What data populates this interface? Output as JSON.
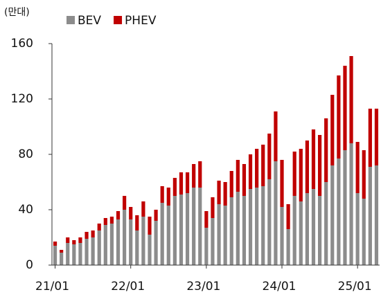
{
  "chart_data": {
    "type": "stacked_bar",
    "y_label": "(만대)",
    "categories": [
      "21/01",
      null,
      null,
      null,
      null,
      null,
      null,
      null,
      null,
      null,
      null,
      null,
      "22/01",
      null,
      null,
      null,
      null,
      null,
      null,
      null,
      null,
      null,
      null,
      null,
      "23/01",
      null,
      null,
      null,
      null,
      null,
      null,
      null,
      null,
      null,
      null,
      null,
      "24/01",
      null,
      null,
      null,
      null,
      null,
      null,
      null,
      null,
      null,
      null,
      null,
      "25/01",
      null,
      null,
      null
    ],
    "series": [
      {
        "name": "BEV",
        "color": "#8c8c8c",
        "values": [
          14,
          9,
          16,
          15,
          16,
          19,
          20,
          25,
          29,
          30,
          33,
          40,
          33,
          25,
          35,
          22,
          32,
          45,
          43,
          50,
          51,
          52,
          56,
          56,
          27,
          34,
          44,
          43,
          49,
          53,
          50,
          55,
          56,
          57,
          62,
          75,
          42,
          26,
          50,
          46,
          52,
          55,
          50,
          60,
          72,
          77,
          83,
          88,
          52,
          48,
          71,
          72
        ]
      },
      {
        "name": "PHEV",
        "color": "#c00000",
        "values": [
          3,
          2,
          4,
          3,
          4,
          5,
          5,
          5,
          5,
          5,
          6,
          10,
          9,
          11,
          11,
          13,
          8,
          12,
          13,
          13,
          16,
          15,
          17,
          19,
          12,
          15,
          17,
          17,
          19,
          23,
          23,
          25,
          28,
          30,
          33,
          36,
          34,
          18,
          32,
          38,
          38,
          43,
          44,
          46,
          51,
          60,
          61,
          63,
          37,
          35,
          42,
          41
        ]
      }
    ],
    "ylim": [
      0,
      160
    ],
    "yticks": [
      0,
      40,
      80,
      120,
      160
    ],
    "grid": false
  }
}
